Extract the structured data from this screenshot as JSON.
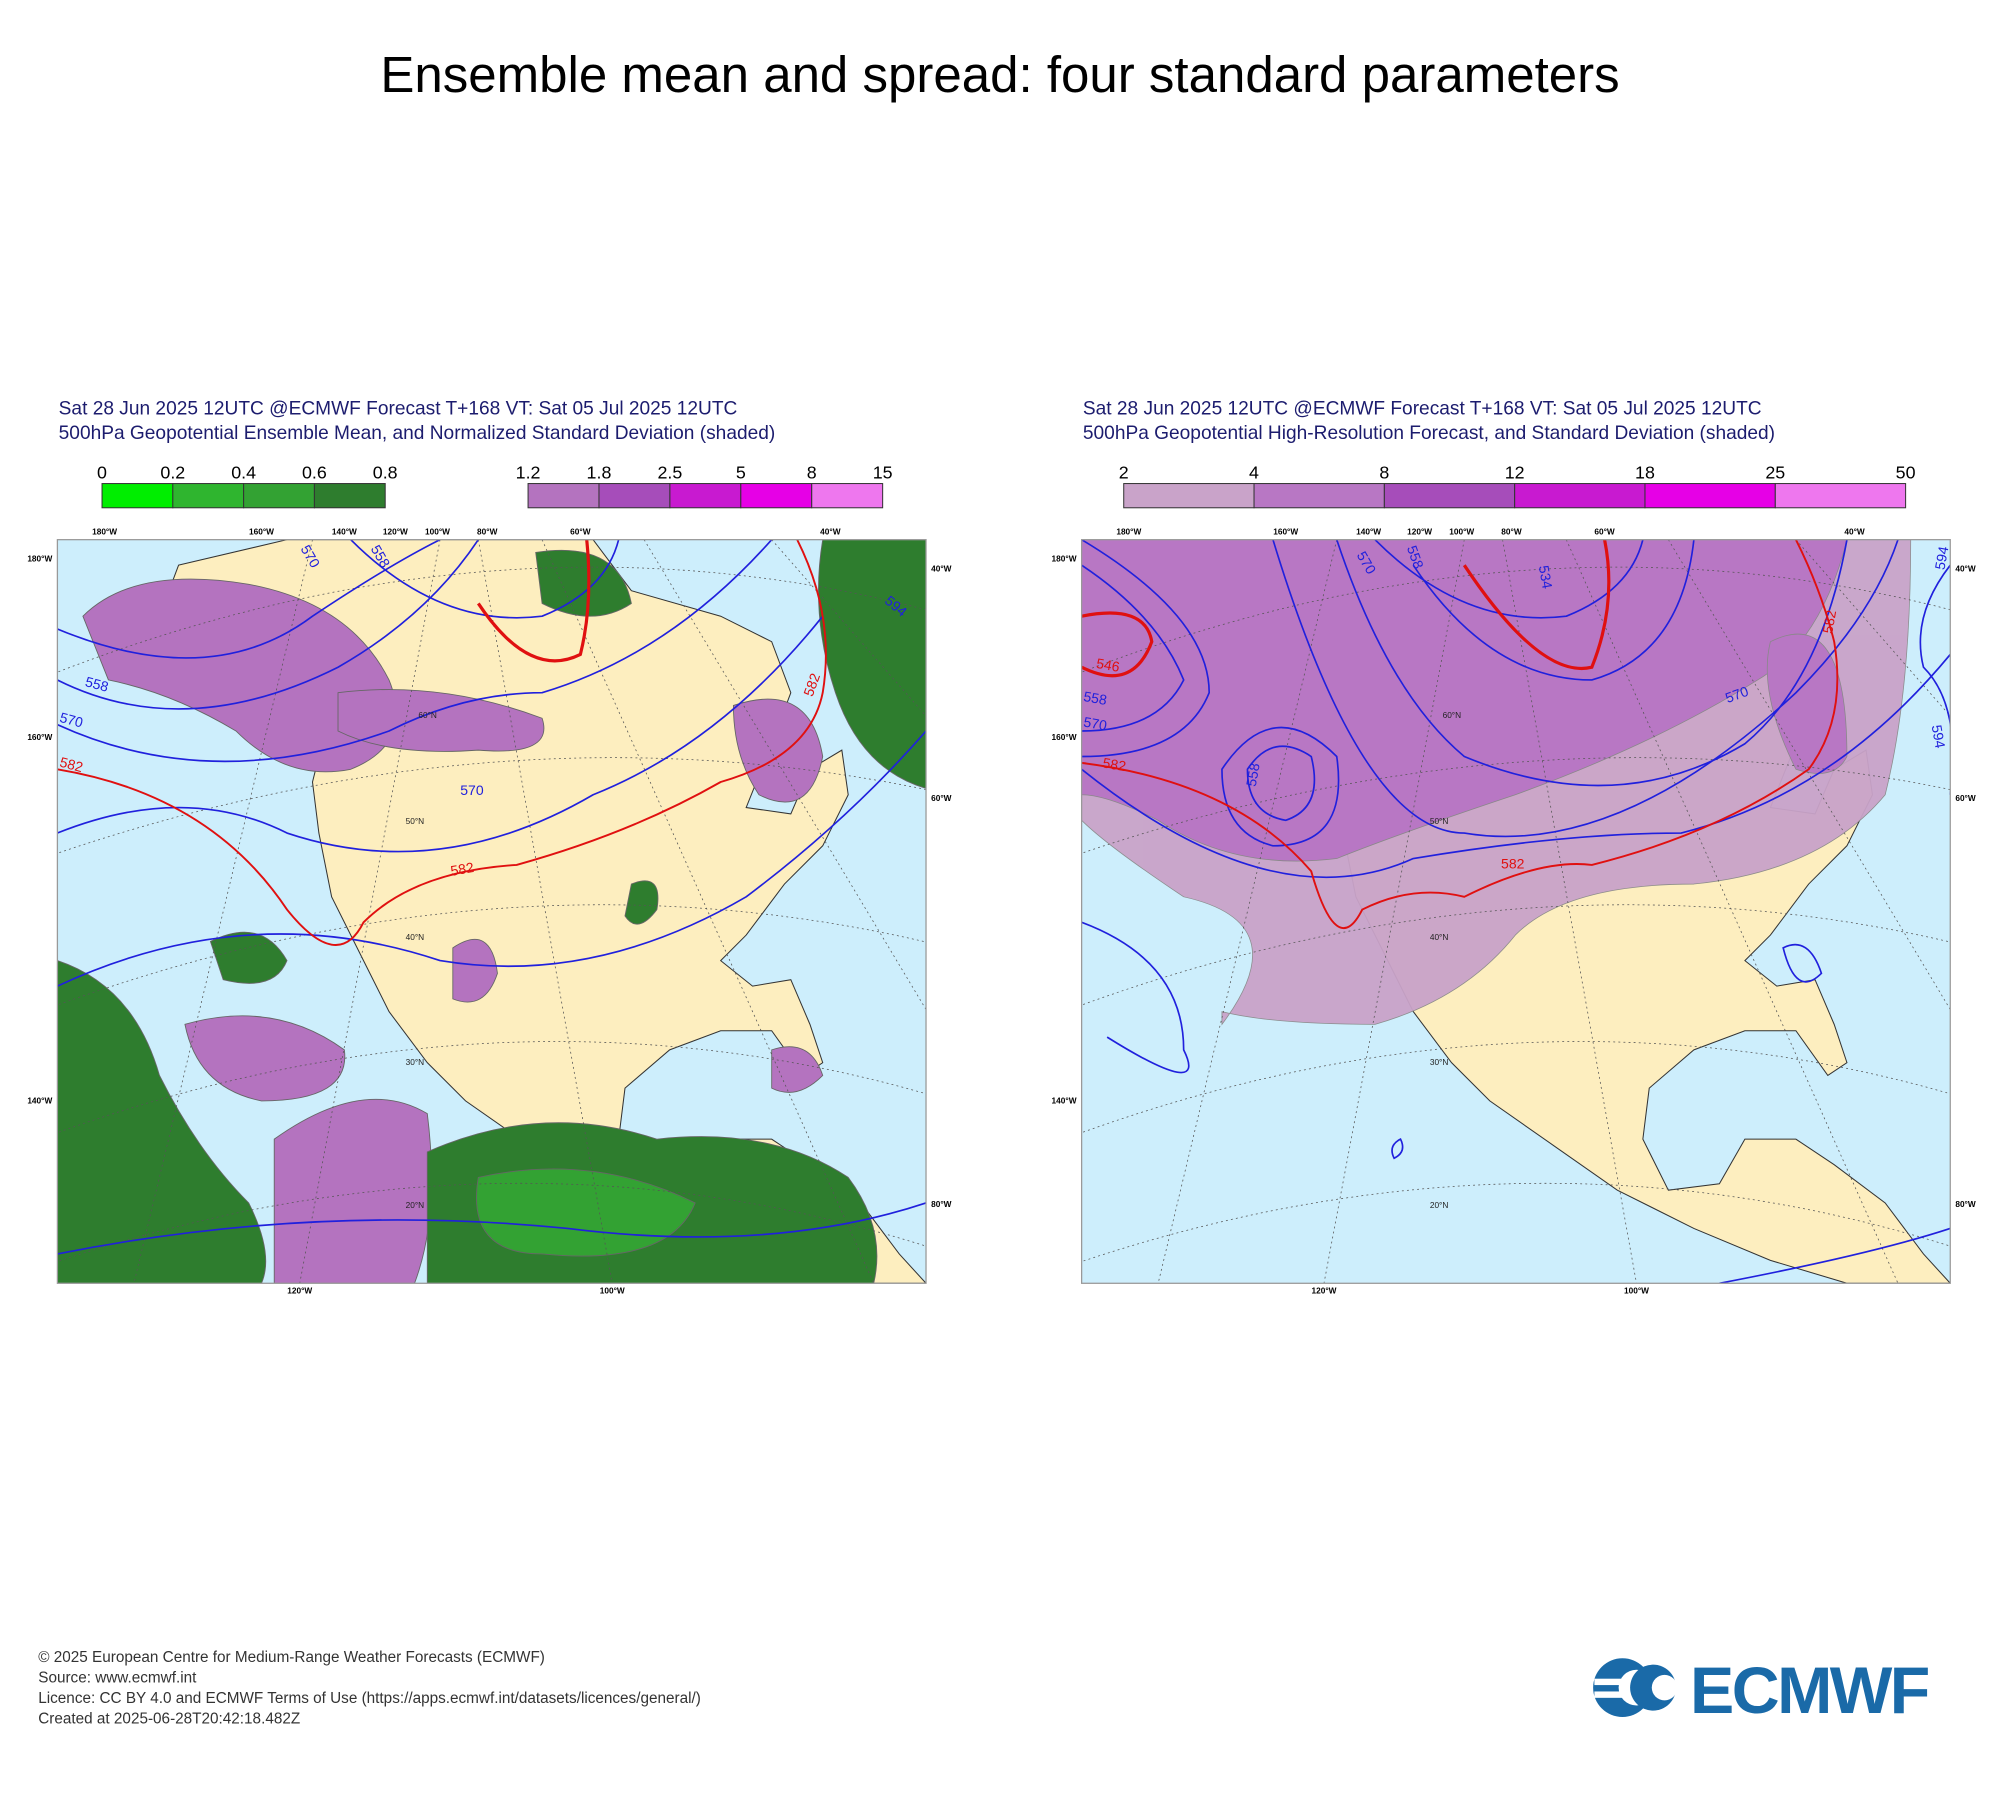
{
  "title": "Ensemble mean and spread: four standard parameters",
  "panels": [
    {
      "header": [
        "Sat 28 Jun 2025 12UTC @ECMWF Forecast T+168 VT: Sat 05 Jul 2025 12UTC",
        "500hPa Geopotential Ensemble Mean, and Normalized Standard Deviation (shaded)"
      ],
      "colorbars": [
        {
          "labels": [
            0,
            0.2,
            0.4,
            0.6,
            0.8
          ],
          "colors": [
            "#00ee00",
            "#2fb52f",
            "#33a233",
            "#2e7d2e"
          ]
        },
        {
          "labels": [
            1.2,
            1.8,
            2.5,
            5,
            8,
            15
          ],
          "colors": [
            "#b473bf",
            "#a64dba",
            "#c81ad0",
            "#e600e6",
            "#ee77ee"
          ]
        }
      ],
      "top_lon_labels": [
        "180°W",
        "160°W",
        "140°W",
        "120°W",
        "100°W",
        "80°W",
        "60°W",
        "40°W"
      ],
      "left_lon_labels": [
        "180°W",
        "160°W",
        "140°W"
      ],
      "right_lon_labels": [
        "40°W",
        "60°W",
        "80°W"
      ],
      "bottom_lon_labels": [
        "120°W",
        "100°W"
      ],
      "lat_labels": [
        "60°N",
        "50°N",
        "40°N",
        "30°N",
        "20°N"
      ],
      "contour_labels": [
        "570",
        "558",
        "558",
        "570",
        "582",
        "570",
        "582",
        "594",
        "582"
      ]
    },
    {
      "header": [
        "Sat 28 Jun 2025 12UTC @ECMWF Forecast T+168 VT: Sat 05 Jul 2025 12UTC",
        "500hPa Geopotential High-Resolution Forecast, and Standard Deviation (shaded)"
      ],
      "colorbars": [
        {
          "labels": [
            2,
            4,
            8,
            12,
            18,
            25,
            50
          ],
          "colors": [
            "#c9a3c9",
            "#b877c4",
            "#a64dba",
            "#c81ad0",
            "#e600e6",
            "#ee77ee"
          ]
        }
      ],
      "top_lon_labels": [
        "180°W",
        "160°W",
        "140°W",
        "120°W",
        "100°W",
        "80°W",
        "60°W",
        "40°W"
      ],
      "left_lon_labels": [
        "180°W",
        "160°W",
        "140°W"
      ],
      "right_lon_labels": [
        "40°W",
        "60°W",
        "80°W"
      ],
      "bottom_lon_labels": [
        "120°W",
        "100°W"
      ],
      "lat_labels": [
        "60°N",
        "50°N",
        "40°N",
        "30°N",
        "20°N"
      ],
      "contour_labels": [
        "570",
        "558",
        "546",
        "558",
        "570",
        "582",
        "558",
        "534",
        "582",
        "570",
        "594",
        "582",
        "594"
      ]
    }
  ],
  "footer": [
    "© 2025 European Centre for Medium-Range Weather Forecasts (ECMWF)",
    "Source: www.ecmwf.int",
    "Licence: CC BY 4.0 and ECMWF Terms of Use (https://apps.ecmwf.int/datasets/licences/general/)",
    "Created at 2025-06-28T20:42:18.482Z"
  ],
  "logo": "ECMWF"
}
